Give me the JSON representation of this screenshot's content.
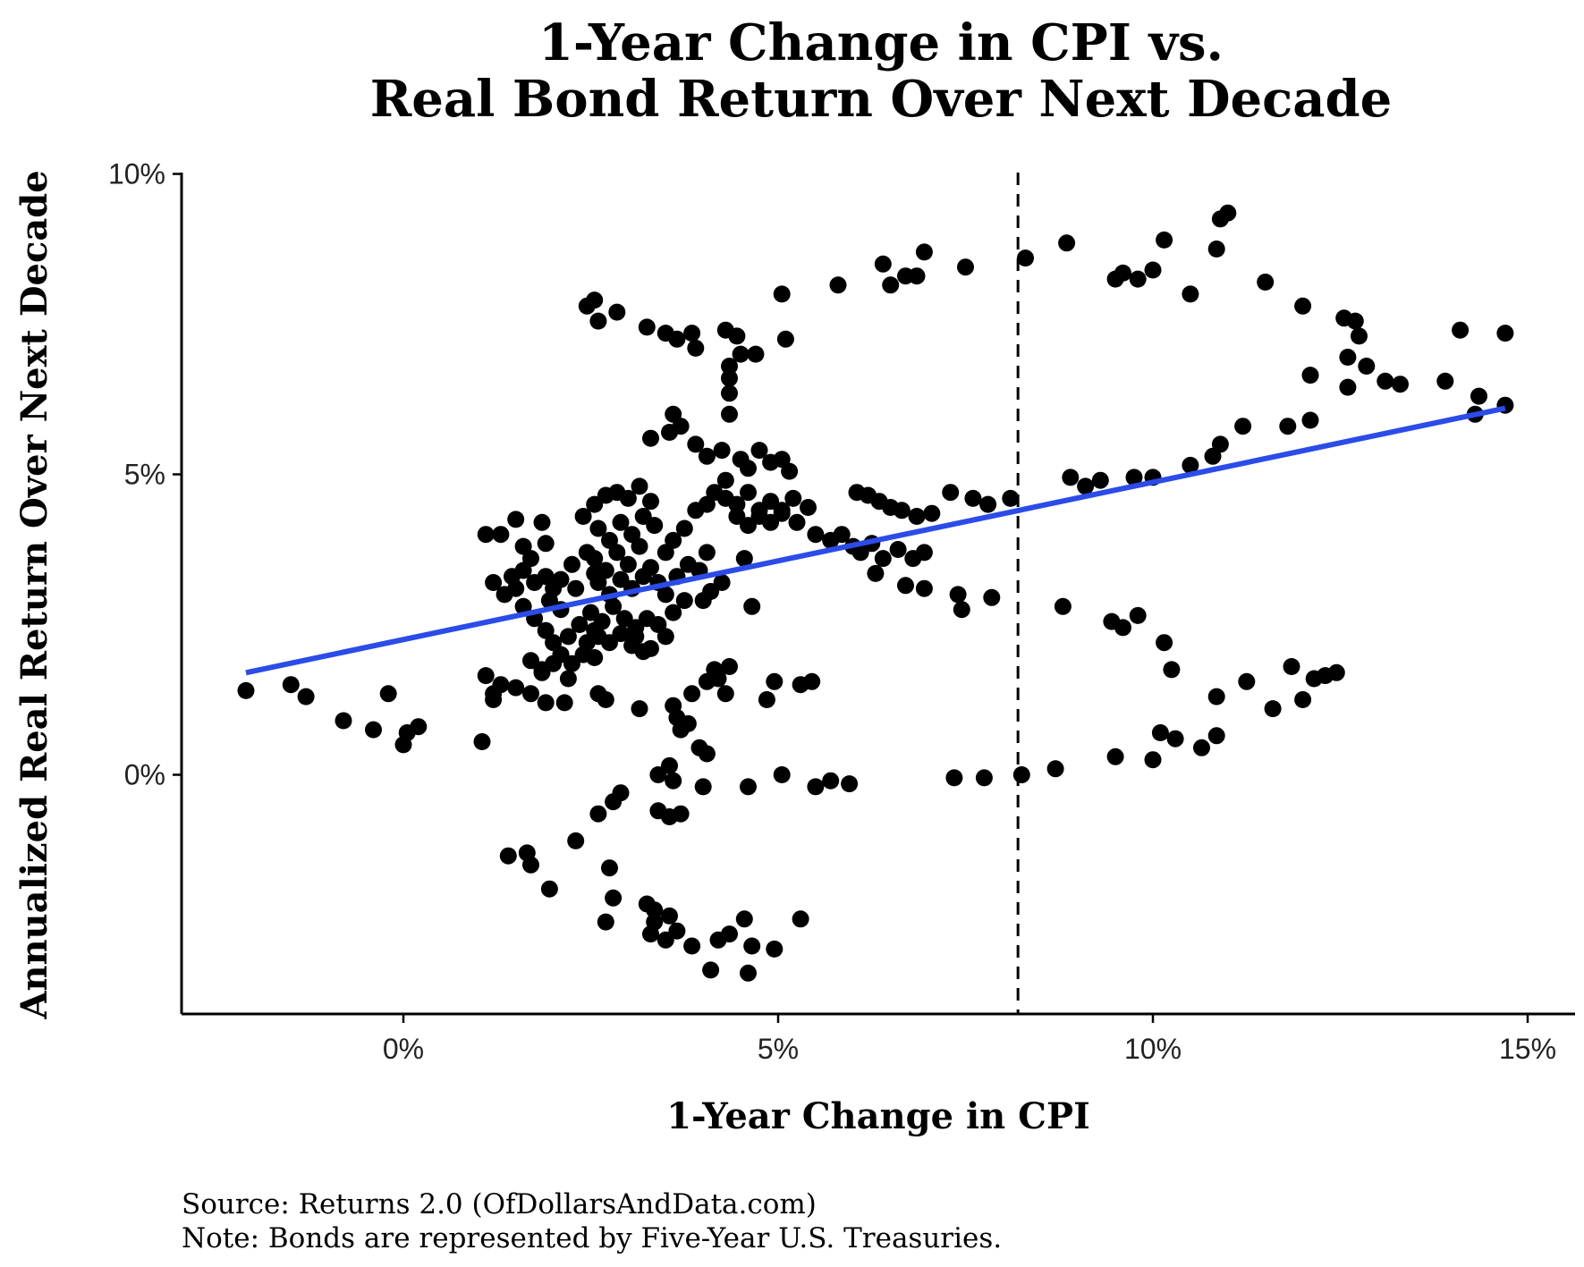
{
  "chart_data": {
    "type": "scatter",
    "title_lines": [
      "1-Year Change in CPI vs.",
      "Real Bond Return Over Next Decade"
    ],
    "xlabel": "1-Year Change in CPI",
    "ylabel": "Annualized Real Return Over Next Decade",
    "x_ticks": [
      {
        "value": 0,
        "label": "0%"
      },
      {
        "value": 5,
        "label": "5%"
      },
      {
        "value": 10,
        "label": "10%"
      },
      {
        "value": 15,
        "label": "15%"
      }
    ],
    "y_ticks": [
      {
        "value": 0,
        "label": "0%"
      },
      {
        "value": 5,
        "label": "5%"
      },
      {
        "value": 10,
        "label": "10%"
      }
    ],
    "xlim": [
      -3,
      15.6
    ],
    "ylim": [
      -3.9,
      10
    ],
    "grid": false,
    "reference_line": {
      "x": 8.2,
      "style": "dashed",
      "color": "#000000"
    },
    "trend_line": {
      "x": [
        -2.1,
        14.7
      ],
      "y": [
        1.7,
        6.1
      ],
      "color": "#2b4ce8"
    },
    "point_color": "#000000",
    "points": [
      [
        -2.1,
        1.4
      ],
      [
        -1.5,
        1.5
      ],
      [
        -1.3,
        1.3
      ],
      [
        -0.8,
        0.9
      ],
      [
        -0.4,
        0.75
      ],
      [
        -0.2,
        1.35
      ],
      [
        0.0,
        0.5
      ],
      [
        0.2,
        0.8
      ],
      [
        0.05,
        0.7
      ],
      [
        1.05,
        0.55
      ],
      [
        1.1,
        1.65
      ],
      [
        1.2,
        1.25
      ],
      [
        1.3,
        1.5
      ],
      [
        1.1,
        4.0
      ],
      [
        1.3,
        4.0
      ],
      [
        1.5,
        4.25
      ],
      [
        1.6,
        3.8
      ],
      [
        1.7,
        3.6
      ],
      [
        1.85,
        4.2
      ],
      [
        1.9,
        3.85
      ],
      [
        1.2,
        3.2
      ],
      [
        1.35,
        3.0
      ],
      [
        1.45,
        3.3
      ],
      [
        1.5,
        3.1
      ],
      [
        1.6,
        3.4
      ],
      [
        1.75,
        3.2
      ],
      [
        1.9,
        3.3
      ],
      [
        2.0,
        3.1
      ],
      [
        2.1,
        3.25
      ],
      [
        2.3,
        3.1
      ],
      [
        1.6,
        2.8
      ],
      [
        1.75,
        2.6
      ],
      [
        1.9,
        2.4
      ],
      [
        2.0,
        2.2
      ],
      [
        2.1,
        2.0
      ],
      [
        2.2,
        2.3
      ],
      [
        2.35,
        2.5
      ],
      [
        2.45,
        2.2
      ],
      [
        2.55,
        1.95
      ],
      [
        1.7,
        1.9
      ],
      [
        1.85,
        1.7
      ],
      [
        2.0,
        1.85
      ],
      [
        2.1,
        2.0
      ],
      [
        2.25,
        1.85
      ],
      [
        1.5,
        1.45
      ],
      [
        1.7,
        1.35
      ],
      [
        1.9,
        1.2
      ],
      [
        2.15,
        1.2
      ],
      [
        2.6,
        1.35
      ],
      [
        2.7,
        1.25
      ],
      [
        3.15,
        1.1
      ],
      [
        2.4,
        4.3
      ],
      [
        2.55,
        4.5
      ],
      [
        2.7,
        4.65
      ],
      [
        2.85,
        4.7
      ],
      [
        3.0,
        4.6
      ],
      [
        3.15,
        4.8
      ],
      [
        3.3,
        4.55
      ],
      [
        2.6,
        4.1
      ],
      [
        2.75,
        3.9
      ],
      [
        2.9,
        4.2
      ],
      [
        3.05,
        4.0
      ],
      [
        3.2,
        4.3
      ],
      [
        3.35,
        4.15
      ],
      [
        2.55,
        3.6
      ],
      [
        2.7,
        3.4
      ],
      [
        2.85,
        3.7
      ],
      [
        3.0,
        3.5
      ],
      [
        3.15,
        3.8
      ],
      [
        3.3,
        3.45
      ],
      [
        2.6,
        3.2
      ],
      [
        2.75,
        3.0
      ],
      [
        2.9,
        3.25
      ],
      [
        3.05,
        3.1
      ],
      [
        3.2,
        3.3
      ],
      [
        3.4,
        3.2
      ],
      [
        2.5,
        2.7
      ],
      [
        2.65,
        2.55
      ],
      [
        2.8,
        2.8
      ],
      [
        2.95,
        2.6
      ],
      [
        3.1,
        2.45
      ],
      [
        3.25,
        2.6
      ],
      [
        3.4,
        2.5
      ],
      [
        2.6,
        2.3
      ],
      [
        2.75,
        2.2
      ],
      [
        2.9,
        2.35
      ],
      [
        3.05,
        2.15
      ],
      [
        3.2,
        2.05
      ],
      [
        3.5,
        2.3
      ],
      [
        3.6,
        2.7
      ],
      [
        3.75,
        2.9
      ],
      [
        3.5,
        3.0
      ],
      [
        3.65,
        3.3
      ],
      [
        3.8,
        3.5
      ],
      [
        3.95,
        3.4
      ],
      [
        4.05,
        3.7
      ],
      [
        3.5,
        3.7
      ],
      [
        3.6,
        3.9
      ],
      [
        3.75,
        4.1
      ],
      [
        3.9,
        4.4
      ],
      [
        4.05,
        4.5
      ],
      [
        4.15,
        4.7
      ],
      [
        4.3,
        4.9
      ],
      [
        3.3,
        5.6
      ],
      [
        3.55,
        5.7
      ],
      [
        3.7,
        5.8
      ],
      [
        3.6,
        6.0
      ],
      [
        3.9,
        5.5
      ],
      [
        4.05,
        5.3
      ],
      [
        4.25,
        5.4
      ],
      [
        4.5,
        5.25
      ],
      [
        4.6,
        5.1
      ],
      [
        4.75,
        5.4
      ],
      [
        4.9,
        5.2
      ],
      [
        5.05,
        5.25
      ],
      [
        5.15,
        5.05
      ],
      [
        4.3,
        4.6
      ],
      [
        4.45,
        4.5
      ],
      [
        4.6,
        4.7
      ],
      [
        4.75,
        4.4
      ],
      [
        4.9,
        4.55
      ],
      [
        5.05,
        4.4
      ],
      [
        5.2,
        4.6
      ],
      [
        5.4,
        4.45
      ],
      [
        4.45,
        4.3
      ],
      [
        4.6,
        4.15
      ],
      [
        4.75,
        4.3
      ],
      [
        4.9,
        4.2
      ],
      [
        5.05,
        4.35
      ],
      [
        5.25,
        4.2
      ],
      [
        5.5,
        4.0
      ],
      [
        5.7,
        3.9
      ],
      [
        5.85,
        4.0
      ],
      [
        6.0,
        3.8
      ],
      [
        6.1,
        3.7
      ],
      [
        6.25,
        3.85
      ],
      [
        6.4,
        3.6
      ],
      [
        6.6,
        3.75
      ],
      [
        6.8,
        3.6
      ],
      [
        6.95,
        3.7
      ],
      [
        6.05,
        4.7
      ],
      [
        6.2,
        4.65
      ],
      [
        6.35,
        4.55
      ],
      [
        6.5,
        4.45
      ],
      [
        6.65,
        4.4
      ],
      [
        6.85,
        4.3
      ],
      [
        7.05,
        4.35
      ],
      [
        7.3,
        4.7
      ],
      [
        7.6,
        4.6
      ],
      [
        7.8,
        4.5
      ],
      [
        8.1,
        4.6
      ],
      [
        6.3,
        3.35
      ],
      [
        6.7,
        3.15
      ],
      [
        6.95,
        3.1
      ],
      [
        7.4,
        3.0
      ],
      [
        7.45,
        2.75
      ],
      [
        7.85,
        2.95
      ],
      [
        8.8,
        2.8
      ],
      [
        9.45,
        2.55
      ],
      [
        9.6,
        2.45
      ],
      [
        9.8,
        2.65
      ],
      [
        10.15,
        2.2
      ],
      [
        10.25,
        1.75
      ],
      [
        8.9,
        4.95
      ],
      [
        9.1,
        4.8
      ],
      [
        9.3,
        4.9
      ],
      [
        9.75,
        4.95
      ],
      [
        10.0,
        4.95
      ],
      [
        10.5,
        5.15
      ],
      [
        10.8,
        5.3
      ],
      [
        10.9,
        5.5
      ],
      [
        11.2,
        5.8
      ],
      [
        11.8,
        5.8
      ],
      [
        12.1,
        5.9
      ],
      [
        12.1,
        6.65
      ],
      [
        12.6,
        6.45
      ],
      [
        12.6,
        6.95
      ],
      [
        12.85,
        6.8
      ],
      [
        13.1,
        6.55
      ],
      [
        13.3,
        6.5
      ],
      [
        13.9,
        6.55
      ],
      [
        14.3,
        6.0
      ],
      [
        14.35,
        6.3
      ],
      [
        14.7,
        6.15
      ],
      [
        12.55,
        7.6
      ],
      [
        12.7,
        7.55
      ],
      [
        12.75,
        7.3
      ],
      [
        14.1,
        7.4
      ],
      [
        14.7,
        7.35
      ],
      [
        11.5,
        8.2
      ],
      [
        12.0,
        7.8
      ],
      [
        10.5,
        8.0
      ],
      [
        10.15,
        8.9
      ],
      [
        10.85,
        8.75
      ],
      [
        10.9,
        9.25
      ],
      [
        11.0,
        9.35
      ],
      [
        9.5,
        8.25
      ],
      [
        9.6,
        8.35
      ],
      [
        9.8,
        8.25
      ],
      [
        10.0,
        8.4
      ],
      [
        8.85,
        8.85
      ],
      [
        8.3,
        8.6
      ],
      [
        7.5,
        8.45
      ],
      [
        6.95,
        8.7
      ],
      [
        6.4,
        8.5
      ],
      [
        6.5,
        8.15
      ],
      [
        6.7,
        8.3
      ],
      [
        6.85,
        8.3
      ],
      [
        5.8,
        8.15
      ],
      [
        5.05,
        8.0
      ],
      [
        2.45,
        7.8
      ],
      [
        2.55,
        7.9
      ],
      [
        2.6,
        7.55
      ],
      [
        2.85,
        7.7
      ],
      [
        3.25,
        7.45
      ],
      [
        3.5,
        7.35
      ],
      [
        3.65,
        7.25
      ],
      [
        3.85,
        7.35
      ],
      [
        3.9,
        7.1
      ],
      [
        4.3,
        7.4
      ],
      [
        4.45,
        7.3
      ],
      [
        4.5,
        7.0
      ],
      [
        4.7,
        7.0
      ],
      [
        5.1,
        7.25
      ],
      [
        4.35,
        6.8
      ],
      [
        4.35,
        6.6
      ],
      [
        4.35,
        6.35
      ],
      [
        4.35,
        6.0
      ],
      [
        1.2,
        1.35
      ],
      [
        3.6,
        1.15
      ],
      [
        3.65,
        0.95
      ],
      [
        3.8,
        0.85
      ],
      [
        3.95,
        0.45
      ],
      [
        4.05,
        0.35
      ],
      [
        3.7,
        0.75
      ],
      [
        3.55,
        0.15
      ],
      [
        3.4,
        0.0
      ],
      [
        3.6,
        -0.1
      ],
      [
        4.0,
        -0.2
      ],
      [
        3.4,
        -0.6
      ],
      [
        3.55,
        -0.7
      ],
      [
        3.7,
        -0.65
      ],
      [
        2.9,
        -0.3
      ],
      [
        2.8,
        -0.45
      ],
      [
        2.6,
        -0.65
      ],
      [
        2.3,
        -1.1
      ],
      [
        1.4,
        -1.35
      ],
      [
        1.65,
        -1.3
      ],
      [
        1.7,
        -1.5
      ],
      [
        1.95,
        -1.9
      ],
      [
        2.75,
        -1.55
      ],
      [
        2.8,
        -2.05
      ],
      [
        3.25,
        -2.15
      ],
      [
        3.35,
        -2.25
      ],
      [
        3.35,
        -2.45
      ],
      [
        3.55,
        -2.35
      ],
      [
        3.65,
        -2.6
      ],
      [
        3.5,
        -2.75
      ],
      [
        3.3,
        -2.65
      ],
      [
        2.7,
        -2.45
      ],
      [
        3.85,
        -2.85
      ],
      [
        4.1,
        -3.25
      ],
      [
        4.2,
        -2.75
      ],
      [
        4.35,
        -2.65
      ],
      [
        4.55,
        -2.4
      ],
      [
        4.6,
        -3.3
      ],
      [
        4.65,
        -2.85
      ],
      [
        4.95,
        -2.9
      ],
      [
        5.3,
        -2.4
      ],
      [
        3.85,
        1.35
      ],
      [
        4.05,
        1.55
      ],
      [
        4.15,
        1.75
      ],
      [
        4.2,
        1.6
      ],
      [
        4.3,
        1.35
      ],
      [
        4.35,
        1.8
      ],
      [
        4.65,
        2.8
      ],
      [
        4.85,
        1.25
      ],
      [
        4.95,
        1.55
      ],
      [
        5.3,
        1.5
      ],
      [
        5.45,
        1.55
      ],
      [
        4.6,
        -0.2
      ],
      [
        5.05,
        0.0
      ],
      [
        5.5,
        -0.2
      ],
      [
        5.7,
        -0.1
      ],
      [
        5.95,
        -0.15
      ],
      [
        7.35,
        -0.05
      ],
      [
        7.75,
        -0.05
      ],
      [
        8.25,
        0.0
      ],
      [
        8.7,
        0.1
      ],
      [
        9.5,
        0.3
      ],
      [
        10.0,
        0.25
      ],
      [
        10.1,
        0.7
      ],
      [
        10.3,
        0.6
      ],
      [
        10.65,
        0.45
      ],
      [
        10.85,
        0.65
      ],
      [
        10.85,
        1.3
      ],
      [
        11.25,
        1.55
      ],
      [
        11.6,
        1.1
      ],
      [
        11.85,
        1.8
      ],
      [
        12.0,
        1.25
      ],
      [
        12.15,
        1.6
      ],
      [
        12.3,
        1.65
      ],
      [
        12.45,
        1.7
      ],
      [
        1.85,
        1.75
      ],
      [
        2.2,
        1.6
      ],
      [
        2.4,
        2.0
      ],
      [
        2.55,
        2.4
      ],
      [
        3.3,
        2.1
      ],
      [
        3.1,
        2.3
      ],
      [
        1.95,
        2.9
      ],
      [
        2.1,
        2.75
      ],
      [
        2.25,
        3.5
      ],
      [
        2.45,
        3.7
      ],
      [
        2.55,
        3.35
      ],
      [
        4.0,
        2.9
      ],
      [
        4.1,
        3.05
      ],
      [
        4.25,
        3.2
      ],
      [
        4.55,
        3.6
      ]
    ],
    "caption_lines": [
      "Source:  Returns 2.0 (OfDollarsAndData.com)",
      "Note: Bonds are represented by Five-Year U.S. Treasuries."
    ]
  }
}
